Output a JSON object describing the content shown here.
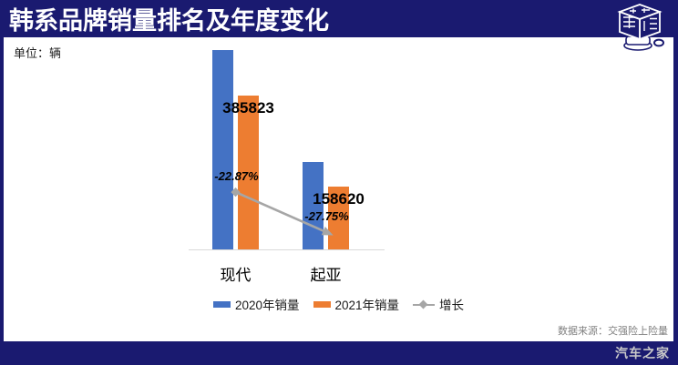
{
  "page": {
    "background": "#1a1a70"
  },
  "header": {
    "title": "韩系品牌销量排名及年度变化"
  },
  "unit_label": "单位：辆",
  "source_note": "数据来源：交强险上险量",
  "footer": {
    "brand": "汽车之家"
  },
  "chart_data": {
    "type": "bar",
    "title": "韩系品牌销量排名及年度变化",
    "unit": "辆",
    "categories": [
      "现代",
      "起亚"
    ],
    "series": [
      {
        "name": "2020年销量",
        "kind": "bar",
        "color": "#4472C4",
        "values": [
          500224,
          219543
        ],
        "estimated_from_bars": true
      },
      {
        "name": "2021年销量",
        "kind": "bar",
        "color": "#ED7D31",
        "values": [
          385823,
          158620
        ],
        "data_labels": [
          "385823",
          "158620"
        ]
      },
      {
        "name": "增长",
        "kind": "line",
        "color": "#A6A6A6",
        "axis": "secondary",
        "values": [
          -22.87,
          -27.75
        ],
        "data_labels": [
          "-22.87%",
          "-27.75%"
        ]
      }
    ],
    "xlabel": "",
    "ylabel": "",
    "ylim_primary": [
      0,
      512000
    ],
    "ylim_secondary": [
      -30,
      -5
    ],
    "legend_position": "bottom",
    "gridlines": false,
    "y_axis_visible": false,
    "x_axis_visible": true
  }
}
